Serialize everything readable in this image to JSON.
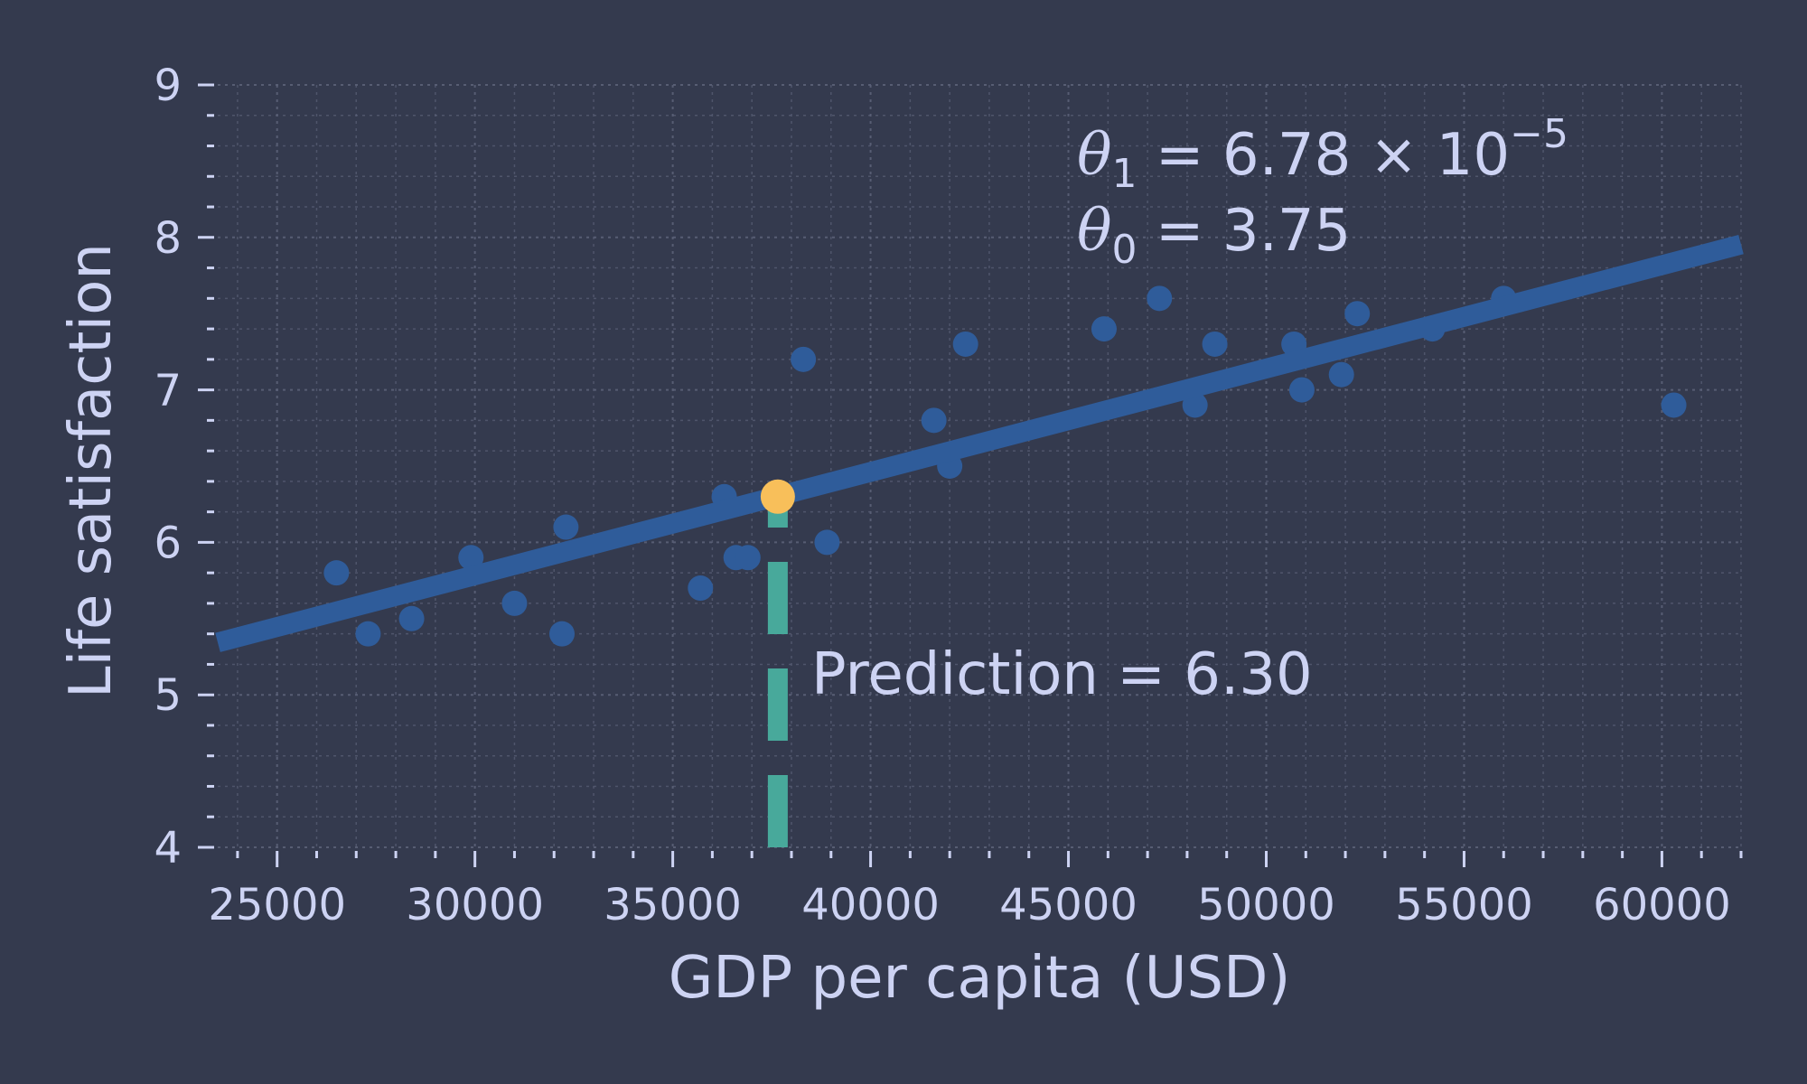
{
  "chart_data": {
    "type": "scatter",
    "title": "",
    "xlabel": "GDP per capita (USD)",
    "ylabel": "Life satisfaction",
    "xlim": [
      23500,
      62000
    ],
    "ylim": [
      4,
      9
    ],
    "x_ticks": [
      25000,
      30000,
      35000,
      40000,
      45000,
      50000,
      55000,
      60000
    ],
    "y_ticks": [
      4,
      5,
      6,
      7,
      8,
      9
    ],
    "grid": true,
    "points": [
      {
        "x": 26500,
        "y": 5.8
      },
      {
        "x": 27300,
        "y": 5.4
      },
      {
        "x": 28400,
        "y": 5.5
      },
      {
        "x": 29900,
        "y": 5.9
      },
      {
        "x": 31000,
        "y": 5.6
      },
      {
        "x": 32200,
        "y": 5.4
      },
      {
        "x": 32300,
        "y": 6.1
      },
      {
        "x": 35700,
        "y": 5.7
      },
      {
        "x": 36300,
        "y": 6.3
      },
      {
        "x": 36600,
        "y": 5.9
      },
      {
        "x": 36900,
        "y": 5.9
      },
      {
        "x": 38300,
        "y": 7.2
      },
      {
        "x": 38900,
        "y": 6.0
      },
      {
        "x": 41600,
        "y": 6.8
      },
      {
        "x": 42000,
        "y": 6.5
      },
      {
        "x": 42400,
        "y": 7.3
      },
      {
        "x": 45900,
        "y": 7.4
      },
      {
        "x": 47300,
        "y": 7.6
      },
      {
        "x": 48200,
        "y": 6.9
      },
      {
        "x": 48700,
        "y": 7.3
      },
      {
        "x": 50700,
        "y": 7.3
      },
      {
        "x": 50900,
        "y": 7.0
      },
      {
        "x": 51900,
        "y": 7.1
      },
      {
        "x": 52300,
        "y": 7.5
      },
      {
        "x": 54200,
        "y": 7.4
      },
      {
        "x": 56000,
        "y": 7.6
      },
      {
        "x": 60300,
        "y": 6.9
      }
    ],
    "regression": {
      "slope": 6.78e-05,
      "intercept": 3.75
    },
    "prediction": {
      "x": 37655,
      "y": 6.3
    },
    "annotations": {
      "theta1_symbol": "θ",
      "theta1_sub": "1",
      "theta1_eq": " = 6.78 × 10",
      "theta1_exp": "−5",
      "theta0_symbol": "θ",
      "theta0_sub": "0",
      "theta0_eq": " = 3.75",
      "prediction_text": "Prediction = 6.30"
    },
    "colors": {
      "background": "#343a4e",
      "points": "#2f5c9a",
      "line": "#2f5c9a",
      "prediction_point": "#f8bf5a",
      "prediction_line": "#48a99b",
      "text": "#cdd3f3",
      "grid": "#5b6178"
    }
  }
}
